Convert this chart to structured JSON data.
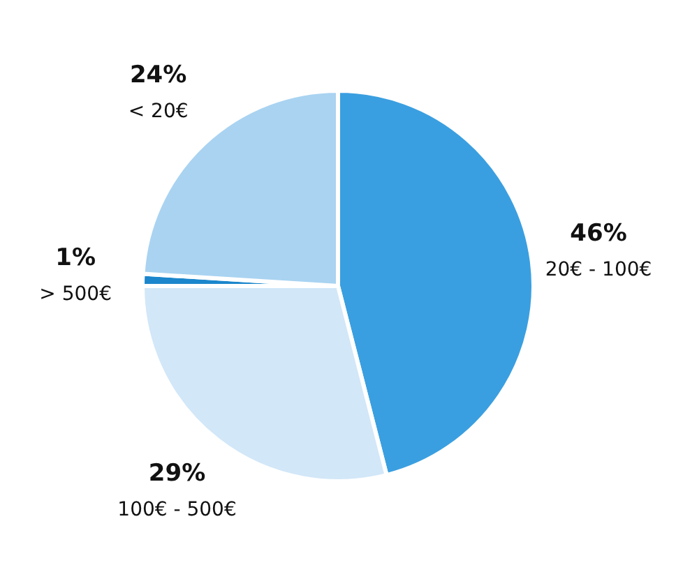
{
  "chart_data": {
    "type": "pie",
    "categories": [
      "20€ - 100€",
      "100€ - 500€",
      "> 500€",
      "< 20€"
    ],
    "values": [
      46,
      29,
      1,
      24
    ],
    "value_labels": [
      "46%",
      "29%",
      "1%",
      "24%"
    ],
    "colors": [
      "#3a9fe0",
      "#d2e7f8",
      "#1b86cc",
      "#a9d3f1"
    ],
    "legend": false
  }
}
